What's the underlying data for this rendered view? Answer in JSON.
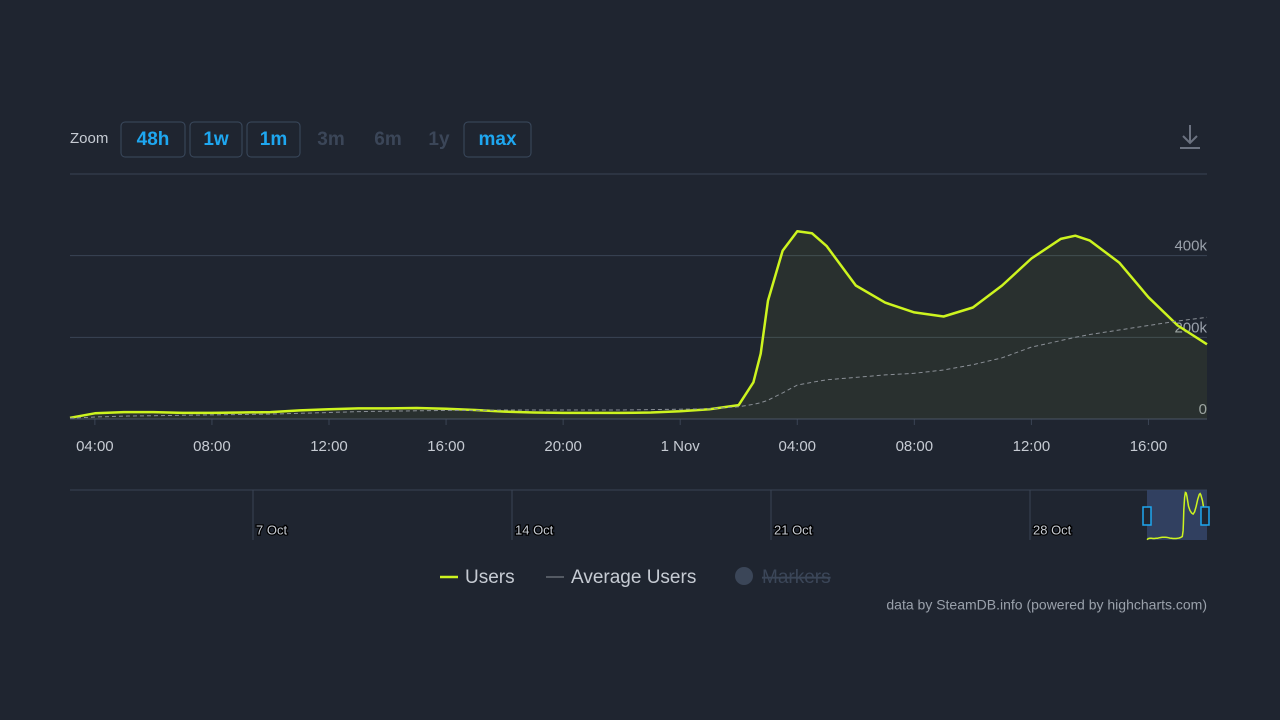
{
  "zoom": {
    "label": "Zoom",
    "buttons": [
      {
        "text": "48h",
        "enabled": true
      },
      {
        "text": "1w",
        "enabled": true
      },
      {
        "text": "1m",
        "enabled": true
      },
      {
        "text": "3m",
        "enabled": false
      },
      {
        "text": "6m",
        "enabled": false
      },
      {
        "text": "1y",
        "enabled": false
      },
      {
        "text": "max",
        "enabled": true
      }
    ]
  },
  "chart_data": {
    "type": "line",
    "x": [
      3.15,
      4,
      5,
      6,
      7,
      8,
      9,
      10,
      11,
      12,
      13,
      14,
      15,
      16,
      17,
      18,
      19,
      20,
      21,
      22,
      23,
      24,
      25,
      26,
      26.5,
      26.75,
      27,
      27.5,
      28,
      28.5,
      29,
      30,
      31,
      32,
      33,
      34,
      35,
      36,
      37,
      37.5,
      38,
      39,
      40,
      41,
      42
    ],
    "series": [
      {
        "name": "Users",
        "color": "#cdf41f",
        "values": [
          3000,
          14000,
          17000,
          17000,
          15000,
          15000,
          16000,
          17000,
          21000,
          24000,
          26000,
          26000,
          27000,
          25000,
          22000,
          18000,
          16000,
          15000,
          15000,
          15000,
          16000,
          19000,
          24000,
          34000,
          90000,
          160000,
          290000,
          412000,
          460000,
          455000,
          424000,
          327000,
          285000,
          261000,
          251000,
          273000,
          327000,
          393000,
          441000,
          449000,
          437000,
          383000,
          298000,
          229000,
          183000
        ]
      },
      {
        "name": "Average Users",
        "color": "#8a8f96",
        "dashed": true,
        "values": [
          2000,
          5000,
          7000,
          8000,
          9000,
          10000,
          11000,
          12000,
          14000,
          16000,
          18000,
          19000,
          20000,
          21000,
          21000,
          22000,
          22000,
          22000,
          22000,
          22000,
          23000,
          24000,
          25000,
          30000,
          36000,
          40000,
          46000,
          64000,
          83000,
          90000,
          96000,
          102000,
          108000,
          112000,
          120000,
          133000,
          150000,
          176000,
          192000,
          200000,
          207000,
          218000,
          229000,
          240000,
          249000
        ]
      }
    ],
    "xlim": [
      3.15,
      42
    ],
    "xticks": [
      {
        "value": 4,
        "label": "04:00"
      },
      {
        "value": 8,
        "label": "08:00"
      },
      {
        "value": 12,
        "label": "12:00"
      },
      {
        "value": 16,
        "label": "16:00"
      },
      {
        "value": 20,
        "label": "20:00"
      },
      {
        "value": 24,
        "label": "1 Nov"
      },
      {
        "value": 28,
        "label": "04:00"
      },
      {
        "value": 32,
        "label": "08:00"
      },
      {
        "value": 36,
        "label": "12:00"
      },
      {
        "value": 40,
        "label": "16:00"
      }
    ],
    "ylim": [
      0,
      600000
    ],
    "yticks": [
      0,
      {
        "value": 200000,
        "label": "200k"
      },
      {
        "value": 400000,
        "label": "400k"
      }
    ],
    "grid": true,
    "legend_disabled": "Markers",
    "navigator_ticks": [
      "7 Oct",
      "14 Oct",
      "21 Oct",
      "28 Oct"
    ]
  },
  "credits": "data by SteamDB.info (powered by highcharts.com)"
}
